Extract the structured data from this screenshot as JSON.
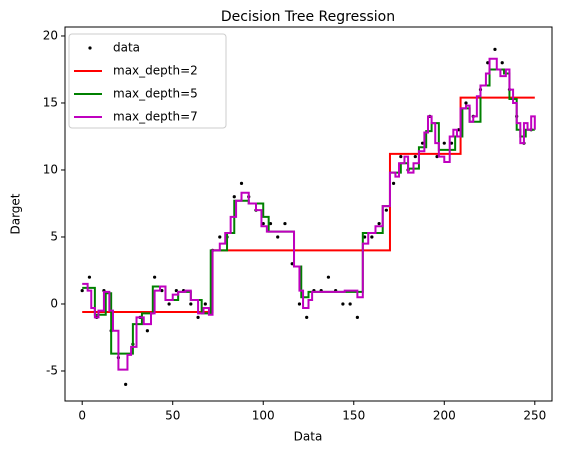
{
  "chart_data": {
    "type": "line",
    "title": "Decision Tree Regression",
    "x_label": "Data",
    "y_label": "Darget",
    "xlim": [
      -9.5,
      259.5
    ],
    "ylim": [
      -7.24,
      20.67
    ],
    "xticks": [
      0,
      50,
      100,
      150,
      200,
      250
    ],
    "yticks": [
      -5,
      0,
      5,
      10,
      15,
      20
    ],
    "legend": "upper left",
    "series": [
      {
        "name": "data",
        "type": "scatter",
        "color": "#000000",
        "x": [
          0,
          4,
          8,
          12,
          16,
          20,
          24,
          28,
          32,
          36,
          40,
          44,
          48,
          52,
          56,
          60,
          64,
          68,
          72,
          76,
          80,
          84,
          88,
          92,
          96,
          100,
          104,
          108,
          112,
          116,
          120,
          124,
          128,
          132,
          136,
          140,
          144,
          148,
          152,
          156,
          160,
          164,
          168,
          172,
          176,
          180,
          184,
          188,
          192,
          196,
          200,
          204,
          208,
          212,
          216,
          220,
          224,
          228,
          232,
          236,
          240,
          244,
          248
        ],
        "values": [
          1,
          2,
          -1,
          1,
          -2,
          -4,
          -6,
          -3,
          -1,
          -2,
          2,
          1,
          0,
          1,
          1,
          0,
          -1,
          0,
          4,
          5,
          5,
          8,
          9,
          8,
          7,
          6,
          6,
          5,
          6,
          3,
          0,
          -1,
          1,
          1,
          2,
          1,
          0,
          0,
          -1,
          5,
          5,
          6,
          7,
          9,
          11,
          10,
          11,
          12,
          14,
          11,
          12,
          12,
          13,
          15,
          14,
          16,
          18,
          19,
          18,
          16,
          14,
          12,
          13
        ]
      },
      {
        "name": "max_depth=2",
        "color": "#ff0000",
        "drawstyle": "steps-post",
        "x": [
          0,
          72,
          170,
          209,
          250
        ],
        "values": [
          -0.6,
          4.0,
          11.2,
          15.4,
          15.4
        ]
      },
      {
        "name": "max_depth=5",
        "color": "#008000",
        "drawstyle": "steps-post",
        "x": [
          0,
          7,
          13,
          16,
          28,
          33,
          39,
          46,
          53,
          60,
          66,
          71,
          80,
          84,
          92,
          100,
          103,
          117,
          121,
          125,
          155,
          166,
          170,
          176,
          180,
          186,
          190,
          193,
          197,
          206,
          210,
          214,
          220,
          225,
          233,
          236,
          240,
          242,
          245,
          250
        ],
        "values": [
          1.2,
          -0.8,
          0.8,
          -3.7,
          -1.5,
          -0.7,
          1.3,
          0.3,
          0.9,
          0.3,
          -0.7,
          4.0,
          5.3,
          7.7,
          7.5,
          6.5,
          5.4,
          2.8,
          0.5,
          0.9,
          5.3,
          7.3,
          9.8,
          10.5,
          10.1,
          11.7,
          12.9,
          13.5,
          11.5,
          12.5,
          14.6,
          13.6,
          16.3,
          17.5,
          17.2,
          15.3,
          13.0,
          12.5,
          13.0,
          13.0
        ]
      },
      {
        "name": "max_depth=7",
        "color": "#bf00bf",
        "drawstyle": "steps-post",
        "x": [
          0,
          3,
          5,
          7,
          9,
          12,
          15,
          17,
          20,
          25,
          27,
          30,
          34,
          38,
          40,
          43,
          46,
          50,
          53,
          57,
          60,
          64,
          67,
          70,
          72,
          76,
          79,
          82,
          85,
          88,
          92,
          96,
          99,
          102,
          117,
          120,
          122,
          125,
          127,
          145,
          152,
          155,
          158,
          162,
          166,
          170,
          173,
          175,
          178,
          180,
          183,
          186,
          189,
          191,
          193,
          195,
          197,
          200,
          203,
          205,
          207,
          209,
          212,
          214,
          216,
          218,
          220,
          223,
          225,
          229,
          231,
          234,
          236,
          238,
          240,
          242,
          244,
          246,
          248,
          250
        ],
        "values": [
          1.5,
          1.0,
          -0.3,
          -1.0,
          -0.5,
          0.9,
          -0.5,
          -2.0,
          -4.9,
          -3.8,
          -3.2,
          -1.0,
          -1.5,
          -0.7,
          1.0,
          1.3,
          0.3,
          0.7,
          0.9,
          1.0,
          0.3,
          -0.7,
          -0.3,
          -0.8,
          4.0,
          4.5,
          5.3,
          6.5,
          7.7,
          8.3,
          7.5,
          7.0,
          5.8,
          5.4,
          2.8,
          1.0,
          -0.3,
          0.3,
          0.9,
          1.0,
          0.5,
          4.5,
          5.3,
          5.8,
          7.3,
          9.8,
          9.5,
          10.5,
          11.0,
          9.8,
          10.5,
          11.4,
          12.8,
          14.0,
          13.5,
          12.0,
          11.0,
          10.6,
          12.5,
          13.0,
          12.5,
          14.6,
          14.8,
          13.6,
          14.0,
          15.5,
          16.3,
          17.2,
          18.3,
          17.5,
          17.0,
          17.5,
          16.0,
          15.0,
          13.5,
          12.0,
          13.5,
          13.0,
          14.0,
          13.0
        ]
      }
    ]
  }
}
